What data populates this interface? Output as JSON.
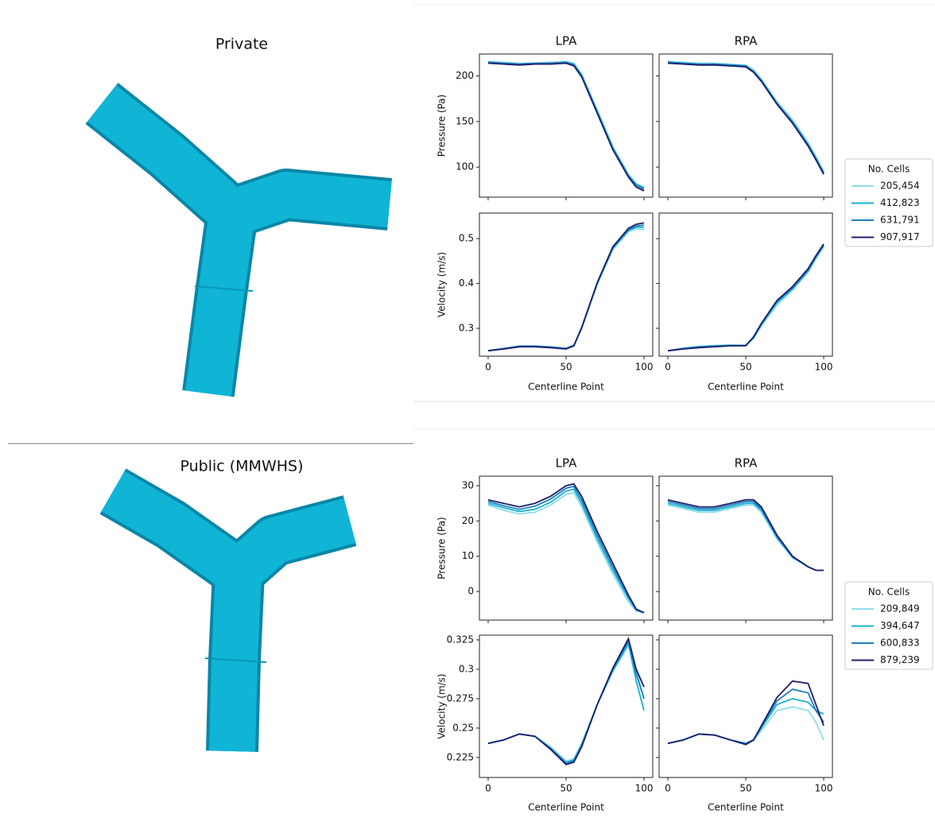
{
  "chart_data": [
    {
      "type": "line",
      "title": "Private",
      "columns": [
        "LPA",
        "RPA"
      ],
      "xlabel": "Centerline Point",
      "x": [
        0,
        10,
        20,
        30,
        40,
        50,
        55,
        60,
        70,
        80,
        90,
        95,
        100
      ],
      "xlim": [
        -5.6,
        105.6
      ],
      "xticks": [
        0,
        50,
        100
      ],
      "legend_title": "No. Cells",
      "series": [
        {
          "name": "205,454",
          "color": "#8fdcec"
        },
        {
          "name": "412,823",
          "color": "#19b2d0"
        },
        {
          "name": "631,791",
          "color": "#1c7fbf"
        },
        {
          "name": "907,917",
          "color": "#1c1f6b"
        }
      ],
      "rows": [
        {
          "ylabel": "Pressure (Pa)",
          "ylim": [
            67,
            224
          ],
          "yticks": [
            100,
            150,
            200
          ],
          "panels": [
            {
              "values": [
                [
                  216,
                  215,
                  214,
                  214,
                  215,
                  216,
                  214,
                  202,
                  163,
                  123,
                  92,
                  82,
                  78
                ],
                [
                  215,
                  214,
                  213,
                  214,
                  214,
                  215,
                  213,
                  201,
                  161,
                  121,
                  91,
                  81,
                  77
                ],
                [
                  215,
                  214,
                  213,
                  214,
                  214,
                  215,
                  212,
                  200,
                  160,
                  120,
                  90,
                  80,
                  76
                ],
                [
                  214,
                  213,
                  212,
                  213,
                  213,
                  214,
                  211,
                  199,
                  159,
                  119,
                  89,
                  78,
                  74
                ]
              ]
            },
            {
              "values": [
                [
                  216,
                  215,
                  214,
                  214,
                  213,
                  212,
                  207,
                  197,
                  172,
                  152,
                  127,
                  112,
                  95
                ],
                [
                  215,
                  214,
                  213,
                  213,
                  212,
                  211,
                  205,
                  195,
                  170,
                  150,
                  125,
                  110,
                  94
                ],
                [
                  215,
                  214,
                  213,
                  213,
                  212,
                  211,
                  205,
                  195,
                  170,
                  149,
                  124,
                  109,
                  93
                ],
                [
                  214,
                  213,
                  212,
                  212,
                  211,
                  210,
                  204,
                  194,
                  169,
                  148,
                  123,
                  108,
                  92
                ]
              ]
            }
          ]
        },
        {
          "ylabel": "Velocity (m/s)",
          "ylim": [
            0.238,
            0.557
          ],
          "yticks": [
            0.3,
            0.4,
            0.5
          ],
          "panels": [
            {
              "values": [
                [
                  0.25,
                  0.255,
                  0.261,
                  0.261,
                  0.259,
                  0.256,
                  0.263,
                  0.3,
                  0.398,
                  0.476,
                  0.515,
                  0.522,
                  0.52
                ],
                [
                  0.25,
                  0.255,
                  0.26,
                  0.26,
                  0.258,
                  0.255,
                  0.262,
                  0.3,
                  0.4,
                  0.478,
                  0.518,
                  0.526,
                  0.525
                ],
                [
                  0.25,
                  0.255,
                  0.26,
                  0.26,
                  0.258,
                  0.255,
                  0.262,
                  0.301,
                  0.401,
                  0.48,
                  0.52,
                  0.528,
                  0.53
                ],
                [
                  0.25,
                  0.254,
                  0.259,
                  0.259,
                  0.257,
                  0.254,
                  0.261,
                  0.302,
                  0.402,
                  0.482,
                  0.523,
                  0.532,
                  0.535
                ]
              ]
            },
            {
              "values": [
                [
                  0.25,
                  0.256,
                  0.26,
                  0.262,
                  0.263,
                  0.262,
                  0.277,
                  0.305,
                  0.352,
                  0.385,
                  0.425,
                  0.455,
                  0.482
                ],
                [
                  0.25,
                  0.255,
                  0.259,
                  0.261,
                  0.262,
                  0.262,
                  0.279,
                  0.308,
                  0.357,
                  0.388,
                  0.428,
                  0.458,
                  0.484
                ],
                [
                  0.25,
                  0.255,
                  0.258,
                  0.26,
                  0.262,
                  0.262,
                  0.28,
                  0.31,
                  0.36,
                  0.39,
                  0.43,
                  0.46,
                  0.486
                ],
                [
                  0.25,
                  0.254,
                  0.257,
                  0.259,
                  0.261,
                  0.261,
                  0.281,
                  0.311,
                  0.362,
                  0.393,
                  0.433,
                  0.462,
                  0.488
                ]
              ]
            }
          ]
        }
      ]
    },
    {
      "type": "line",
      "title": "Public (MMWHS)",
      "columns": [
        "LPA",
        "RPA"
      ],
      "xlabel": "Centerline Point",
      "x": [
        0,
        10,
        20,
        30,
        40,
        50,
        55,
        60,
        70,
        80,
        90,
        95,
        100
      ],
      "xlim": [
        -5.6,
        105.6
      ],
      "xticks": [
        0,
        50,
        100
      ],
      "legend_title": "No. Cells",
      "series": [
        {
          "name": "209,849",
          "color": "#8fdcec"
        },
        {
          "name": "394,647",
          "color": "#19b2d0"
        },
        {
          "name": "600,833",
          "color": "#1c7fbf"
        },
        {
          "name": "879,239",
          "color": "#1c1f6b"
        }
      ],
      "rows": [
        {
          "ylabel": "Pressure (Pa)",
          "ylim": [
            -8.1,
            32.7
          ],
          "yticks": [
            0,
            10,
            20,
            30
          ],
          "panels": [
            {
              "values": [
                [
                  24.5,
                  23,
                  22,
                  22.5,
                  24.5,
                  27.5,
                  28,
                  24,
                  14,
                  5,
                  -3,
                  -5.5,
                  -6
                ],
                [
                  25,
                  23.7,
                  22.7,
                  23.3,
                  25.3,
                  28.5,
                  29,
                  25,
                  15,
                  6,
                  -2,
                  -5.3,
                  -6
                ],
                [
                  25.5,
                  24.3,
                  23.3,
                  24.2,
                  26.2,
                  29.3,
                  29.8,
                  26,
                  16,
                  7,
                  -1.5,
                  -5.1,
                  -6
                ],
                [
                  26,
                  25,
                  24,
                  25,
                  27,
                  30,
                  30.5,
                  27,
                  17,
                  8,
                  -1,
                  -5,
                  -6
                ]
              ]
            },
            {
              "values": [
                [
                  24.5,
                  23.5,
                  22.5,
                  22.5,
                  23.5,
                  24.5,
                  24.5,
                  22.5,
                  15,
                  9.5,
                  7,
                  6,
                  6
                ],
                [
                  25,
                  24,
                  23,
                  23,
                  24,
                  25,
                  25,
                  23,
                  15.3,
                  9.7,
                  7,
                  6,
                  6
                ],
                [
                  25.5,
                  24.5,
                  23.5,
                  23.5,
                  24.5,
                  25.5,
                  25.5,
                  23.5,
                  15.7,
                  9.8,
                  7,
                  6,
                  6
                ],
                [
                  26,
                  25,
                  24,
                  24,
                  25,
                  26,
                  26,
                  24,
                  16,
                  10,
                  7,
                  6,
                  6
                ]
              ]
            }
          ]
        },
        {
          "ylabel": "Velocity (m/s)",
          "ylim": [
            0.208,
            0.329
          ],
          "yticks": [
            0.225,
            0.25,
            0.275,
            0.3,
            0.325
          ],
          "panels": [
            {
              "values": [
                [
                  0.237,
                  0.24,
                  0.245,
                  0.243,
                  0.234,
                  0.222,
                  0.224,
                  0.237,
                  0.27,
                  0.298,
                  0.32,
                  0.3,
                  0.275
                ],
                [
                  0.237,
                  0.24,
                  0.245,
                  0.243,
                  0.233,
                  0.221,
                  0.223,
                  0.236,
                  0.27,
                  0.299,
                  0.322,
                  0.29,
                  0.265
                ],
                [
                  0.237,
                  0.24,
                  0.245,
                  0.243,
                  0.233,
                  0.22,
                  0.222,
                  0.235,
                  0.27,
                  0.3,
                  0.324,
                  0.296,
                  0.275
                ],
                [
                  0.237,
                  0.24,
                  0.245,
                  0.243,
                  0.232,
                  0.219,
                  0.221,
                  0.234,
                  0.27,
                  0.301,
                  0.326,
                  0.3,
                  0.285
                ]
              ]
            },
            {
              "values": [
                [
                  0.237,
                  0.24,
                  0.245,
                  0.244,
                  0.24,
                  0.237,
                  0.239,
                  0.248,
                  0.265,
                  0.268,
                  0.265,
                  0.255,
                  0.24
                ],
                [
                  0.237,
                  0.24,
                  0.245,
                  0.244,
                  0.24,
                  0.237,
                  0.24,
                  0.25,
                  0.27,
                  0.275,
                  0.272,
                  0.265,
                  0.262
                ],
                [
                  0.237,
                  0.24,
                  0.245,
                  0.244,
                  0.24,
                  0.237,
                  0.24,
                  0.251,
                  0.273,
                  0.283,
                  0.28,
                  0.265,
                  0.255
                ],
                [
                  0.237,
                  0.24,
                  0.245,
                  0.244,
                  0.24,
                  0.236,
                  0.24,
                  0.252,
                  0.276,
                  0.29,
                  0.288,
                  0.27,
                  0.252
                ]
              ]
            }
          ]
        }
      ]
    }
  ]
}
